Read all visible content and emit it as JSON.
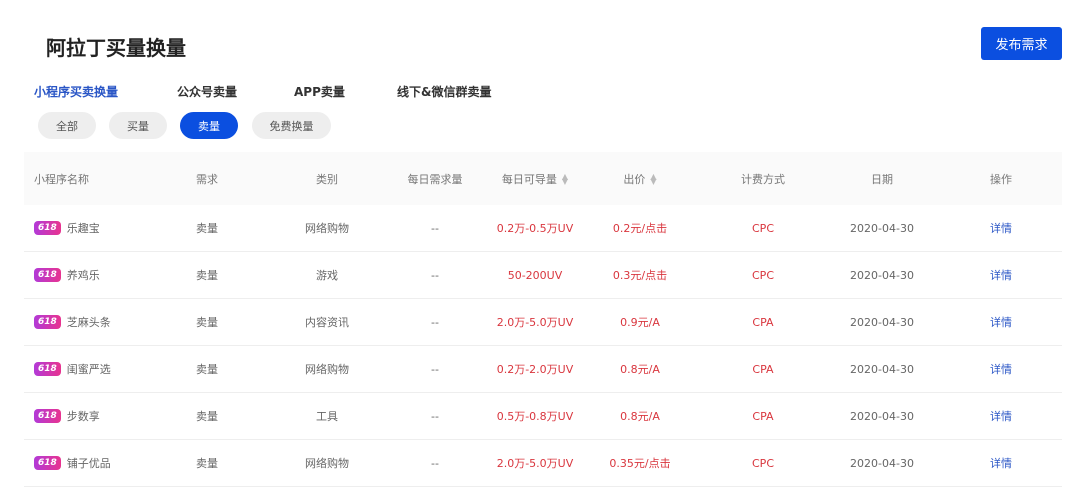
{
  "header": {
    "title": "阿拉丁买量换量",
    "publish_label": "发布需求"
  },
  "tabs": [
    {
      "label": "小程序买卖换量",
      "active": true
    },
    {
      "label": "公众号卖量"
    },
    {
      "label": "APP卖量"
    },
    {
      "label": "线下&微信群卖量"
    }
  ],
  "filters": [
    {
      "label": "全部"
    },
    {
      "label": "买量"
    },
    {
      "label": "卖量",
      "active": true
    },
    {
      "label": "免费换量"
    }
  ],
  "table": {
    "columns": [
      "小程序名称",
      "需求",
      "类别",
      "每日需求量",
      "每日可导量",
      "出价",
      "计费方式",
      "日期",
      "操作"
    ],
    "badge": "618",
    "rows": [
      {
        "name": "乐趣宝",
        "demand": "卖量",
        "category": "网络购物",
        "daily_need": "--",
        "daily_supply": "0.2万-0.5万UV",
        "price": "0.2元/点击",
        "billing": "CPC",
        "date": "2020-04-30",
        "action": "详情"
      },
      {
        "name": "养鸡乐",
        "demand": "卖量",
        "category": "游戏",
        "daily_need": "--",
        "daily_supply": "50-200UV",
        "price": "0.3元/点击",
        "billing": "CPC",
        "date": "2020-04-30",
        "action": "详情"
      },
      {
        "name": "芝麻头条",
        "demand": "卖量",
        "category": "内容资讯",
        "daily_need": "--",
        "daily_supply": "2.0万-5.0万UV",
        "price": "0.9元/A",
        "billing": "CPA",
        "date": "2020-04-30",
        "action": "详情"
      },
      {
        "name": "闺蜜严选",
        "demand": "卖量",
        "category": "网络购物",
        "daily_need": "--",
        "daily_supply": "0.2万-2.0万UV",
        "price": "0.8元/A",
        "billing": "CPA",
        "date": "2020-04-30",
        "action": "详情"
      },
      {
        "name": "步数享",
        "demand": "卖量",
        "category": "工具",
        "daily_need": "--",
        "daily_supply": "0.5万-0.8万UV",
        "price": "0.8元/A",
        "billing": "CPA",
        "date": "2020-04-30",
        "action": "详情"
      },
      {
        "name": "铺子优品",
        "demand": "卖量",
        "category": "网络购物",
        "daily_need": "--",
        "daily_supply": "2.0万-5.0万UV",
        "price": "0.35元/点击",
        "billing": "CPC",
        "date": "2020-04-30",
        "action": "详情"
      }
    ]
  },
  "colors": {
    "accent": "#0b4fe0",
    "price": "#d9363e",
    "link": "#2a56c6"
  }
}
